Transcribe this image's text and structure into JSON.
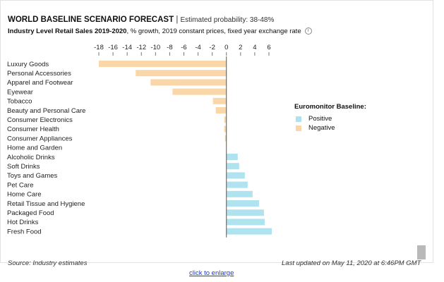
{
  "header": {
    "title": "WORLD BASELINE SCENARIO FORECAST",
    "separator": " | ",
    "probability": "Estimated probability: 38-48%",
    "subtitle_bold": "Industry Level Retail Sales 2019-2020",
    "subtitle_rest": ", % growth, 2019 constant prices, fixed year exchange rate",
    "info_icon": "i"
  },
  "legend": {
    "title": "Euromonitor Baseline:",
    "items": [
      {
        "label": "Positive",
        "color": "#aee3ef"
      },
      {
        "label": "Negative",
        "color": "#fad7a8"
      }
    ]
  },
  "footer": {
    "source": "Source: Industry estimates",
    "updated": "Last updated on May 11, 2020 at 6:46PM GMT",
    "enlarge_link": "click to enlarge"
  },
  "chart_data": {
    "type": "bar",
    "orientation": "horizontal",
    "categories": [
      "Luxury Goods",
      "Personal Accessories",
      "Apparel and Footwear",
      "Eyewear",
      "Tobacco",
      "Beauty and Personal Care",
      "Consumer Electronics",
      "Consumer Health",
      "Consumer Appliances",
      "Home and Garden",
      "Alcoholic Drinks",
      "Soft Drinks",
      "Toys and Games",
      "Pet Care",
      "Home Care",
      "Retail Tissue and Hygiene",
      "Packaged Food",
      "Hot Drinks",
      "Fresh Food"
    ],
    "values": [
      -18,
      -12.8,
      -10.7,
      -7.6,
      -1.9,
      -1.5,
      -0.3,
      -0.3,
      -0.2,
      0,
      1.6,
      1.8,
      2.6,
      3.0,
      3.7,
      4.6,
      5.3,
      5.4,
      6.4
    ],
    "x_ticks": [
      -18,
      -16,
      -14,
      -12,
      -10,
      -8,
      -6,
      -4,
      -2,
      0,
      2,
      4,
      6
    ],
    "xlim": [
      -18,
      6.5
    ],
    "axis_position": "top",
    "grid": false,
    "legend_position": "right",
    "colors": {
      "positive": "#aee3ef",
      "negative": "#fad7a8",
      "zero_line": "#555555"
    }
  }
}
